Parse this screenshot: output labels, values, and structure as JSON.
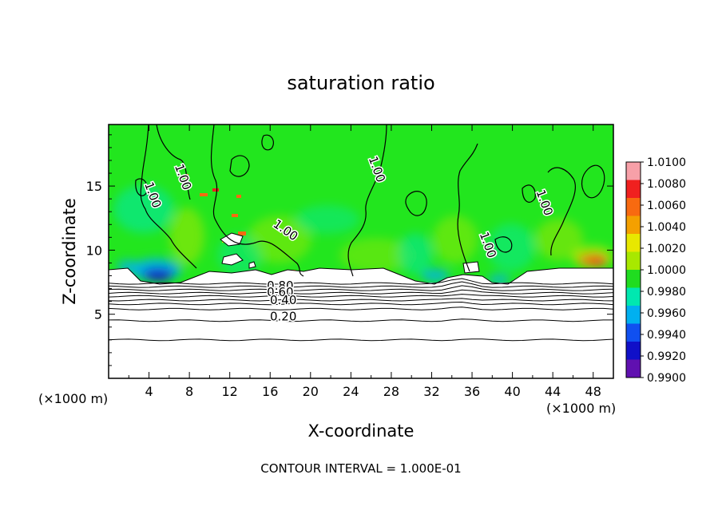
{
  "chart_data": {
    "type": "heatmap",
    "title": "saturation ratio",
    "xlabel": "X-coordinate",
    "ylabel": "Z-coordinate",
    "x_unit_left": "(×1000 m)",
    "x_unit_right": "(×1000 m)",
    "xlim": [
      0,
      50
    ],
    "ylim": [
      0,
      19.8
    ],
    "x_ticks": [
      4,
      8,
      12,
      16,
      20,
      24,
      28,
      32,
      36,
      40,
      44,
      48
    ],
    "y_ticks": [
      5,
      10,
      15
    ],
    "colorbar": {
      "levels": [
        "1.0100",
        "1.0080",
        "1.0060",
        "1.0040",
        "1.0020",
        "1.0000",
        "0.9980",
        "0.9960",
        "0.9940",
        "0.9920",
        "0.9900"
      ],
      "colors": [
        "#f7a0a8",
        "#f0201f",
        "#f86a10",
        "#f4a000",
        "#e8e800",
        "#a8e800",
        "#20dc20",
        "#00e8b0",
        "#00b0f0",
        "#1050f0",
        "#1010c8",
        "#6010b0"
      ]
    },
    "contour_labels": [
      {
        "text": "1.00",
        "x": 7.0,
        "z": 15.6
      },
      {
        "text": "1.00",
        "x": 4.0,
        "z": 14.2
      },
      {
        "text": "1.00",
        "x": 17.3,
        "z": 11.3
      },
      {
        "text": "1.00",
        "x": 26.2,
        "z": 16.2
      },
      {
        "text": "1.00",
        "x": 42.8,
        "z": 13.6
      },
      {
        "text": "1.00",
        "x": 37.2,
        "z": 10.3
      },
      {
        "text": "0.80",
        "x": 17.0,
        "z": 6.9
      },
      {
        "text": "0.60",
        "x": 17.0,
        "z": 6.4
      },
      {
        "text": "0.40",
        "x": 17.3,
        "z": 5.8
      },
      {
        "text": "0.20",
        "x": 17.3,
        "z": 4.5
      }
    ],
    "contour_interval_text": "CONTOUR INTERVAL = 1.000E-01"
  }
}
